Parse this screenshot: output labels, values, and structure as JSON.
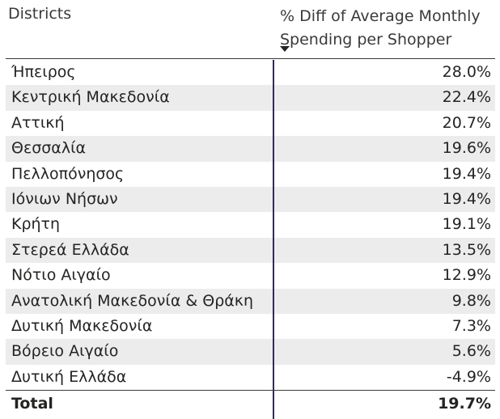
{
  "chart_data": {
    "type": "table",
    "columns": [
      "Districts",
      "% Diff of Average Monthly Spending per Shopper"
    ],
    "header_lines": [
      "% Diff of Average Monthly",
      "Spending per Shopper"
    ],
    "sort": "descending",
    "rows": [
      {
        "district": "Ήπειρος",
        "value_label": "28.0%",
        "value": 28.0
      },
      {
        "district": "Κεντρική Μακεδονία",
        "value_label": "22.4%",
        "value": 22.4
      },
      {
        "district": "Αττική",
        "value_label": "20.7%",
        "value": 20.7
      },
      {
        "district": "Θεσσαλία",
        "value_label": "19.6%",
        "value": 19.6
      },
      {
        "district": "Πελλοπόνησος",
        "value_label": "19.4%",
        "value": 19.4
      },
      {
        "district": "Ιόνιων Νήσων",
        "value_label": "19.4%",
        "value": 19.4
      },
      {
        "district": "Κρήτη",
        "value_label": "19.1%",
        "value": 19.1
      },
      {
        "district": "Στερεά Ελλάδα",
        "value_label": "13.5%",
        "value": 13.5
      },
      {
        "district": "Νότιο Αιγαίο",
        "value_label": "12.9%",
        "value": 12.9
      },
      {
        "district": "Ανατολική Μακεδονία & Θράκη",
        "value_label": "9.8%",
        "value": 9.8
      },
      {
        "district": "Δυτική Μακεδονία",
        "value_label": "7.3%",
        "value": 7.3
      },
      {
        "district": "Βόρειο Αιγαίο",
        "value_label": "5.6%",
        "value": 5.6
      },
      {
        "district": "Δυτική Ελλάδα",
        "value_label": "-4.9%",
        "value": -4.9
      }
    ],
    "total": {
      "label": "Total",
      "value_label": "19.7%",
      "value": 19.7
    }
  },
  "colors": {
    "text": "#252423",
    "header_text": "#3b3a39",
    "alt_row": "#ececec",
    "divider": "#2e2a6b"
  },
  "icons": {
    "sort": "sort-descending-icon"
  }
}
